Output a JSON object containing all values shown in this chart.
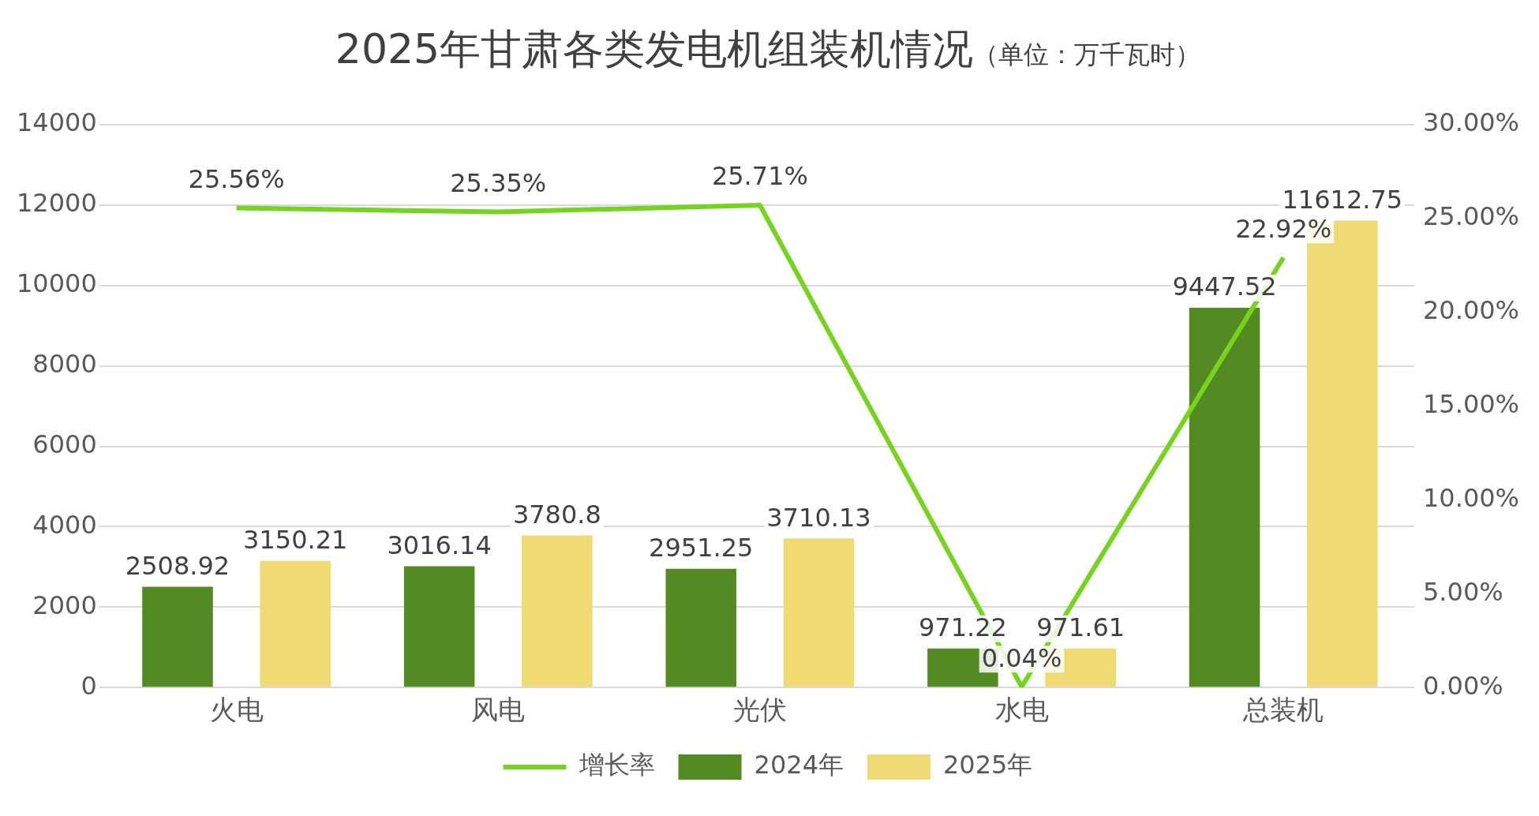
{
  "chart_data": {
    "type": "bar",
    "title": "2025年甘肃各类发电机组装机情况",
    "subtitle": "（单位：万千瓦时）",
    "categories": [
      "火电",
      "风电",
      "光伏",
      "水电",
      "总装机"
    ],
    "series": [
      {
        "name": "2024年",
        "color": "#548a22",
        "values": [
          2508.92,
          3016.14,
          2951.25,
          971.22,
          9447.52
        ],
        "value_labels": [
          "2508.92",
          "3016.14",
          "2951.25",
          "971.22",
          "9447.52"
        ]
      },
      {
        "name": "2025年",
        "color": "#f0da73",
        "values": [
          3150.21,
          3780.8,
          3710.13,
          971.61,
          11612.75
        ],
        "value_labels": [
          "3150.21",
          "3780.8",
          "3710.13",
          "971.61",
          "11612.75"
        ]
      },
      {
        "name": "增长率",
        "type": "line",
        "axis": "y2",
        "color": "#76d41e",
        "marker": "none",
        "values": [
          25.56,
          25.35,
          25.71,
          0.04,
          22.92
        ],
        "value_labels": [
          "25.56%",
          "25.35%",
          "25.71%",
          "0.04%",
          "22.92%"
        ]
      }
    ],
    "ylim": [
      0,
      14000
    ],
    "yticks": [
      0,
      2000,
      4000,
      6000,
      8000,
      10000,
      12000,
      14000
    ],
    "y2lim": [
      0,
      30
    ],
    "y2ticks": [
      {
        "value": 0,
        "label": "0.00%"
      },
      {
        "value": 5,
        "label": "5.00%"
      },
      {
        "value": 10,
        "label": "10.00%"
      },
      {
        "value": 15,
        "label": "15.00%"
      },
      {
        "value": 20,
        "label": "20.00%"
      },
      {
        "value": 25,
        "label": "25.00%"
      },
      {
        "value": 30,
        "label": "30.00%"
      }
    ],
    "grid": "y",
    "legend": "bottom"
  }
}
